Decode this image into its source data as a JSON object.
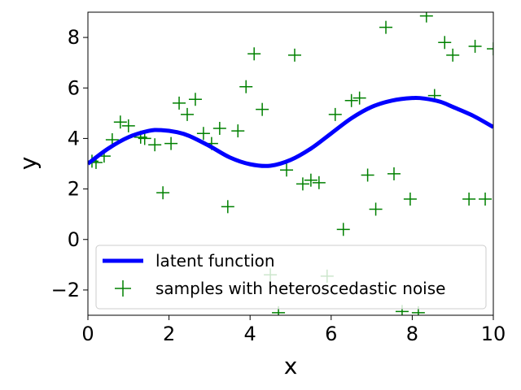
{
  "chart_data": {
    "type": "line",
    "xlabel": "x",
    "ylabel": "y",
    "xlim": [
      0,
      10
    ],
    "ylim": [
      -3,
      9
    ],
    "xticks": [
      0,
      2,
      4,
      6,
      8,
      10
    ],
    "yticks": [
      -2,
      0,
      2,
      4,
      6,
      8
    ],
    "ytick_labels": [
      "−2",
      "0",
      "2",
      "4",
      "6",
      "8"
    ],
    "grid": false,
    "legend_position": "lower-left",
    "series": [
      {
        "name": "latent function",
        "kind": "line",
        "color": "#0000ff",
        "x": [
          0,
          0.5,
          1,
          1.5,
          1.8,
          2.2,
          2.5,
          3,
          3.5,
          4,
          4.5,
          5,
          5.5,
          6,
          6.5,
          7,
          7.5,
          8,
          8.3,
          8.7,
          9,
          9.5,
          10
        ],
        "y": [
          3.0,
          3.6,
          4.05,
          4.3,
          4.33,
          4.25,
          4.1,
          3.7,
          3.25,
          2.98,
          2.92,
          3.15,
          3.6,
          4.2,
          4.8,
          5.25,
          5.5,
          5.6,
          5.58,
          5.45,
          5.25,
          4.9,
          4.45
        ]
      },
      {
        "name": "samples with heteroscedastic noise",
        "kind": "scatter",
        "color": "#008000",
        "x": [
          0.1,
          0.2,
          0.4,
          0.6,
          0.8,
          1.0,
          1.3,
          1.4,
          1.65,
          1.85,
          2.05,
          2.25,
          2.45,
          2.65,
          2.85,
          3.05,
          3.25,
          3.45,
          3.7,
          3.9,
          4.1,
          4.3,
          4.5,
          4.7,
          4.9,
          5.1,
          5.3,
          5.5,
          5.7,
          5.9,
          6.1,
          6.3,
          6.5,
          6.7,
          6.9,
          7.1,
          7.35,
          7.55,
          7.75,
          7.95,
          8.15,
          8.35,
          8.55,
          8.8,
          9.0,
          9.4,
          9.55,
          9.8,
          10.0
        ],
        "y": [
          3.1,
          3.05,
          3.3,
          3.95,
          4.65,
          4.5,
          4.05,
          4.0,
          3.75,
          1.85,
          3.8,
          5.4,
          4.95,
          5.55,
          4.2,
          3.8,
          4.4,
          1.3,
          4.3,
          6.05,
          7.35,
          5.15,
          -1.4,
          -2.9,
          2.75,
          7.3,
          2.2,
          2.35,
          2.25,
          -1.45,
          4.95,
          0.4,
          5.5,
          5.6,
          2.55,
          1.2,
          8.4,
          2.6,
          -2.85,
          1.6,
          -2.9,
          8.85,
          5.7,
          7.8,
          7.3,
          1.6,
          7.65,
          1.6,
          7.55
        ]
      }
    ]
  }
}
